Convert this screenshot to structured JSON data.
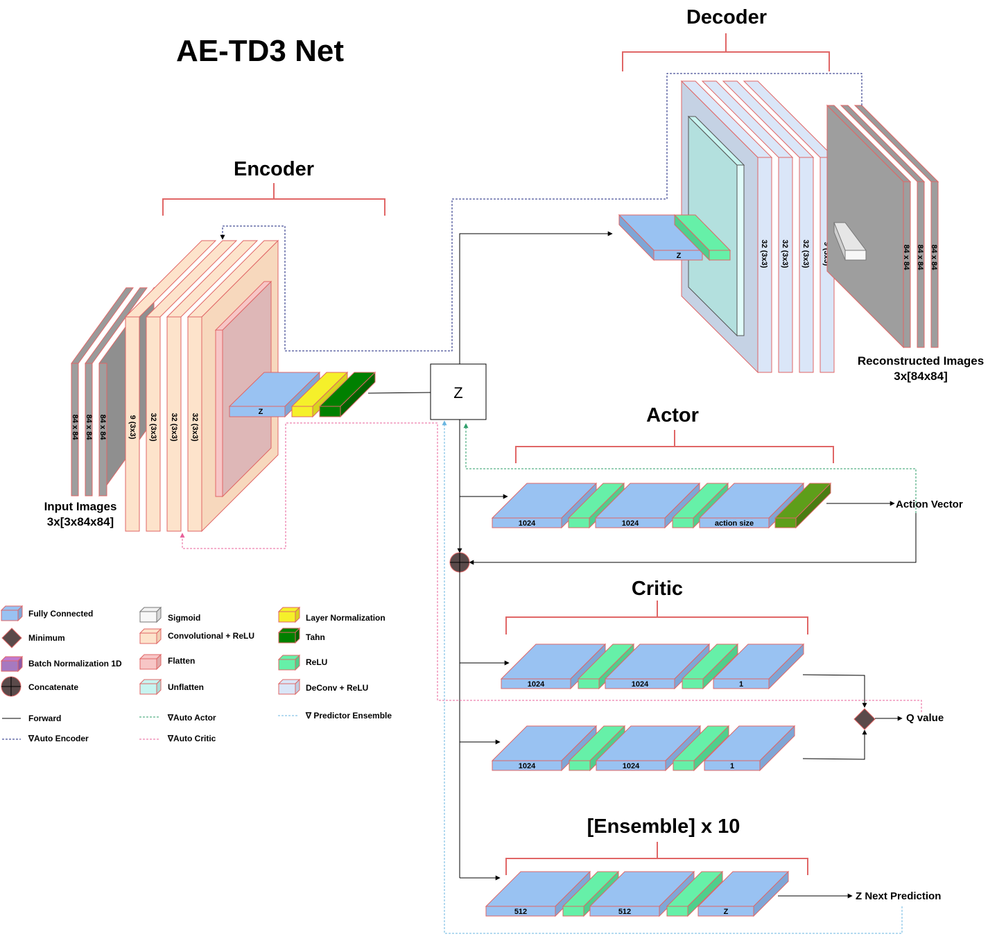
{
  "title": "AE-TD3 Net",
  "sections": {
    "encoder": "Encoder",
    "decoder": "Decoder",
    "actor": "Actor",
    "critic": "Critic",
    "ensemble": "[Ensemble] x 10"
  },
  "input_images": {
    "line1": "Input Images",
    "line2": "3x[3x84x84]"
  },
  "reconstructed_images": {
    "line1": "Reconstructed Images",
    "line2": "3x[84x84]"
  },
  "encoder": {
    "image_labels": [
      "84 x 84",
      "84 x 84",
      "84 x 84"
    ],
    "conv_labels": [
      "9 (3x3)",
      "32 (3x3)",
      "32 (3x3)",
      "32 (3x3)"
    ],
    "fc_label": "Z"
  },
  "decoder": {
    "fc_label": "Z",
    "deconv_labels": [
      "32 (3x3)",
      "32 (3x3)",
      "32 (3x3)",
      "9 (3x3)"
    ],
    "image_labels": [
      "84 x 84",
      "84 x 84",
      "84 x 84"
    ]
  },
  "z_node": "Z",
  "actor": {
    "blocks": [
      "1024",
      "1024",
      "action size"
    ],
    "output": "Action Vector"
  },
  "critic": {
    "net1": [
      "1024",
      "1024",
      "1"
    ],
    "net2": [
      "1024",
      "1024",
      "1"
    ],
    "output": "Q value"
  },
  "ensemble": {
    "blocks": [
      "512",
      "512",
      "Z"
    ],
    "output": "Z Next Prediction"
  },
  "legend": {
    "fully_connected": "Fully Connected",
    "minimum": "Minimum",
    "batch_norm": "Batch Normalization 1D",
    "concatenate": "Concatenate",
    "sigmoid": "Sigmoid",
    "conv_relu": "Convolutional + ReLU",
    "flatten": "Flatten",
    "unflatten": "Unflatten",
    "layer_norm": "Layer Normalization",
    "tanh": "Tahn",
    "relu": "ReLU",
    "deconv_relu": "DeConv + ReLU",
    "forward": "Forward",
    "auto_encoder": "∇Auto Encoder",
    "auto_actor": "∇Auto Actor",
    "auto_critic": "∇Auto Critic",
    "predictor_ensemble": "∇ Predictor Ensemble"
  },
  "colors": {
    "fc": "#99c2f2",
    "relu": "#66f0a8",
    "layer_norm": "#f5f02a",
    "tanh": "#008000",
    "conv": "#fde3cb",
    "flatten": "#f7c6c6",
    "deconv": "#dae6f8",
    "unflatten": "#c8f4f0",
    "sigmoid": "#f2f2f2",
    "batch_norm": "#a679c0",
    "image": "#9e9e9e",
    "bracket": "#e06666",
    "auto_encoder": "#1a237e",
    "auto_actor": "#2e9e6a",
    "auto_critic": "#e8609a",
    "predictor": "#6ab6e0"
  }
}
